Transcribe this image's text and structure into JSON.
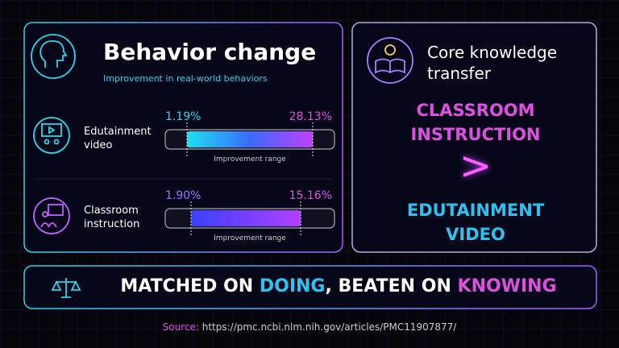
{
  "left_panel": {
    "title": "Behavior change",
    "subtitle": "Improvement in real-world behaviors",
    "rows": [
      {
        "label": "Edutainment video",
        "min_label": "1.19%",
        "max_label": "28.13%",
        "caption": "Improvement range"
      },
      {
        "label": "Classroom instruction",
        "min_label": "1.90%",
        "max_label": "15.16%",
        "caption": "Improvement range"
      }
    ]
  },
  "right_panel": {
    "title": "Core knowledge transfer",
    "winner": "CLASSROOM INSTRUCTION",
    "symbol": ">",
    "loser": "EDUTAINMENT VIDEO"
  },
  "banner": {
    "part1": "MATCHED ON ",
    "part2": "DOING",
    "part3": ", BEATEN ON ",
    "part4": "KNOWING"
  },
  "source": {
    "label": "Source:",
    "url": "https://pmc.ncbi.nlm.nih.gov/articles/PMC11907877/"
  }
}
